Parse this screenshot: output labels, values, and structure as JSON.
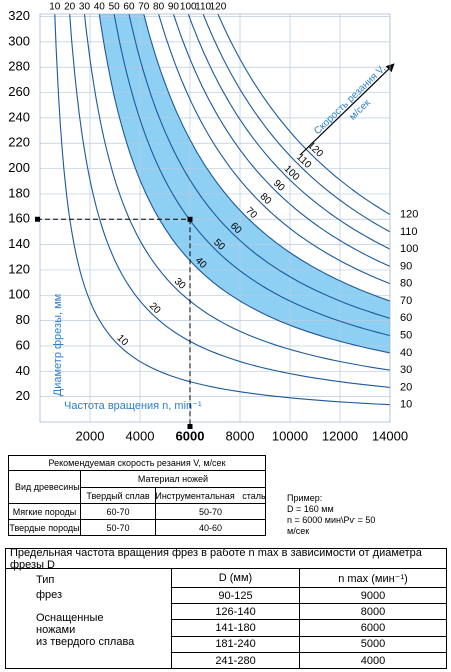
{
  "chart_data": {
    "type": "nomogram",
    "x_label": "Частота вращения n, min⁻¹",
    "y_label": "Диаметр фрезы, мм",
    "speed_label": "Скорость резания V,",
    "speed_unit": "м/сек",
    "speeds": [
      10,
      20,
      30,
      40,
      50,
      60,
      70,
      80,
      90,
      100,
      110,
      120
    ],
    "band": [
      40,
      70
    ],
    "band_color": "#8ecff4",
    "color": "#1c5a9a",
    "xlim": [
      0,
      14000
    ],
    "ylim": [
      0,
      322
    ],
    "xticks": [
      2000,
      4000,
      6000,
      8000,
      10000,
      12000,
      14000
    ],
    "yticks": [
      20,
      40,
      60,
      80,
      100,
      120,
      140,
      160,
      180,
      200,
      220,
      240,
      260,
      280,
      300,
      320
    ],
    "grid": true,
    "example": {
      "x": 6000,
      "y": 160
    }
  },
  "table1": {
    "title": "Рекомендуемая скорость резания V, м/сек",
    "col_header": "Вид древесины",
    "group_header": "Материал ножей",
    "sub_headers": [
      "Твердый сплав",
      "Инструментальная   сталь"
    ],
    "rows": [
      [
        "Мягкие породы",
        "60-70",
        "50-70"
      ],
      [
        "Твердые породы",
        "50-70",
        "40-60"
      ]
    ]
  },
  "example_note": [
    "Пример:",
    "D = 160 мм",
    "n = 6000 мин\\Рѵ = 50",
    "м/сек"
  ],
  "table2": {
    "title": "Предельная частота вращения фрез в работе n max в зависимости от диаметра фрезы D",
    "headers": [
      "Тип",
      "D (мм)",
      "n max (мин⁻¹)"
    ],
    "type_lines": [
      "фрез",
      "Оснащенные",
      "ножами",
      "из твердого сплава"
    ],
    "rows": [
      [
        "90-125",
        9000
      ],
      [
        "126-140",
        8000
      ],
      [
        "141-180",
        6000
      ],
      [
        "181-240",
        5000
      ],
      [
        "241-280",
        4000
      ]
    ]
  }
}
